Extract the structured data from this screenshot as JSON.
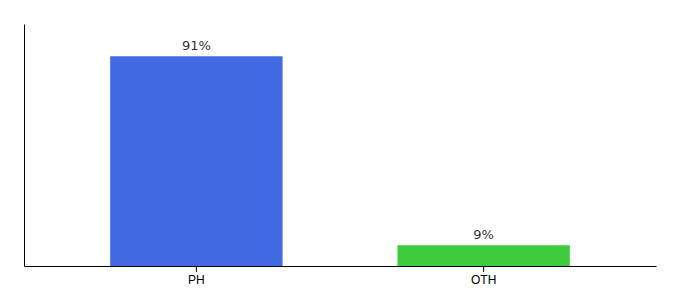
{
  "chart_data": {
    "type": "bar",
    "categories": [
      "PH",
      "OTH"
    ],
    "values": [
      91,
      9
    ],
    "value_labels": [
      "91%",
      "9%"
    ],
    "colors": [
      "#4169e1",
      "#3ecc3e"
    ],
    "ylim": [
      0,
      105
    ],
    "data_labels": true,
    "tick_labels": "x",
    "grid": false
  }
}
